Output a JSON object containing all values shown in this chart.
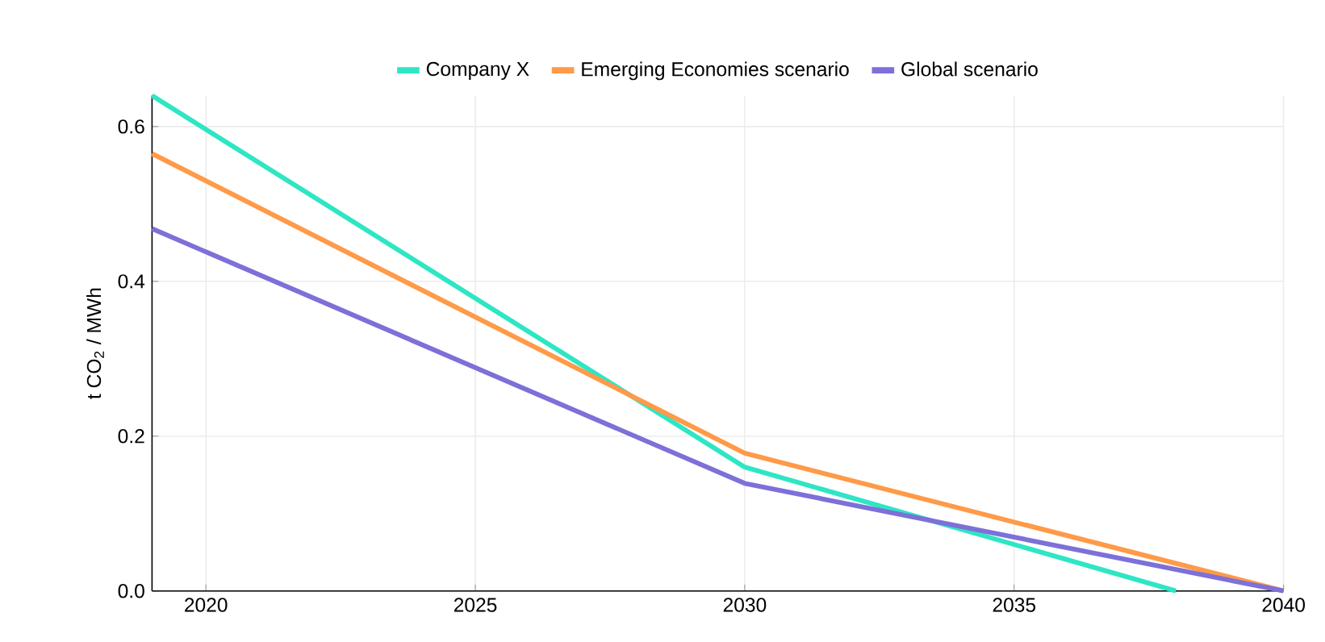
{
  "chart_data": {
    "type": "line",
    "ylabel": "t CO$_{2}$ / MWh",
    "xlim": [
      2019,
      2040
    ],
    "ylim": [
      0,
      0.64
    ],
    "xticks": [
      2020,
      2025,
      2030,
      2035,
      2040
    ],
    "yticks": [
      {
        "value": 0,
        "label": "0.0"
      },
      {
        "value": 0.2,
        "label": "0.2"
      },
      {
        "value": 0.4,
        "label": "0.4"
      },
      {
        "value": 0.6,
        "label": "0.6"
      }
    ],
    "grid": true,
    "legend": "top",
    "series": [
      {
        "name": "Company X",
        "color": "#2ee6c4",
        "x": [
          2019,
          2030,
          2038
        ],
        "values": [
          0.64,
          0.16,
          0
        ]
      },
      {
        "name": "Emerging Economies scenario",
        "color": "#ff9a48",
        "x": [
          2019,
          2030,
          2040
        ],
        "values": [
          0.565,
          0.178,
          0
        ]
      },
      {
        "name": "Global scenario",
        "color": "#7d70d8",
        "x": [
          2019,
          2030,
          2040
        ],
        "values": [
          0.468,
          0.139,
          0
        ]
      }
    ]
  }
}
